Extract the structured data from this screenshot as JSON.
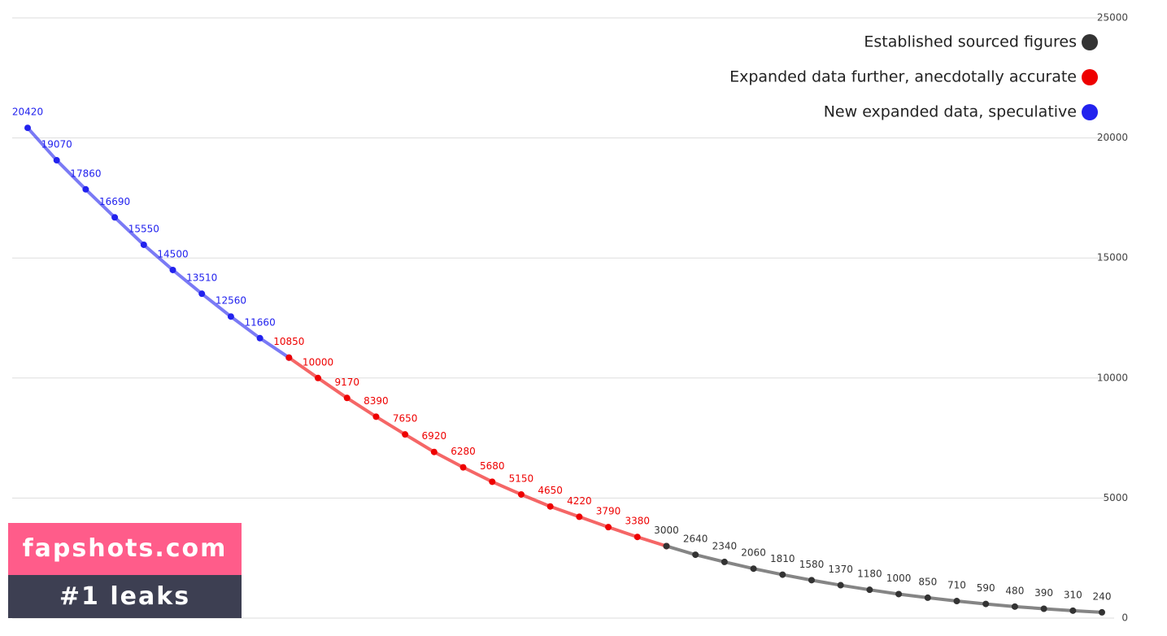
{
  "chart_data": {
    "type": "line",
    "mirrored": true,
    "legend": "top-left",
    "grid": true,
    "ylim": [
      0,
      25000
    ],
    "yticks": [
      0,
      5000,
      10000,
      15000,
      20000,
      25000
    ],
    "series": [
      {
        "name": "New expanded data, speculative",
        "color": "#2222ee",
        "values": [
          null,
          null,
          null,
          null,
          null,
          null,
          null,
          null,
          null,
          null,
          null,
          null,
          null,
          null,
          null,
          null,
          null,
          null,
          null,
          null,
          null,
          null,
          null,
          null,
          null,
          null,
          null,
          null,
          10850,
          11660,
          12560,
          13510,
          14500,
          15550,
          16690,
          17860,
          19070,
          20420
        ]
      },
      {
        "name": "Expanded data further, anecdotally accurate",
        "color": "#ee0000",
        "values": [
          null,
          null,
          null,
          null,
          null,
          null,
          null,
          null,
          null,
          null,
          null,
          null,
          null,
          null,
          null,
          3000,
          3380,
          3790,
          4220,
          4650,
          5150,
          5680,
          6280,
          6920,
          7650,
          8390,
          9170,
          10000,
          10850,
          null,
          null,
          null,
          null,
          null,
          null,
          null,
          null,
          null
        ]
      },
      {
        "name": "Established sourced figures",
        "color": "#333333",
        "values": [
          240,
          310,
          390,
          480,
          590,
          710,
          850,
          1000,
          1180,
          1370,
          1580,
          1810,
          2060,
          2340,
          2640,
          3000,
          null,
          null,
          null,
          null,
          null,
          null,
          null,
          null,
          null,
          null,
          null,
          null,
          null,
          null,
          null,
          null,
          null,
          null,
          null,
          null,
          null,
          null
        ]
      }
    ]
  },
  "watermark": {
    "site": "fapshots.com",
    "tagline": "#1 leaks"
  }
}
